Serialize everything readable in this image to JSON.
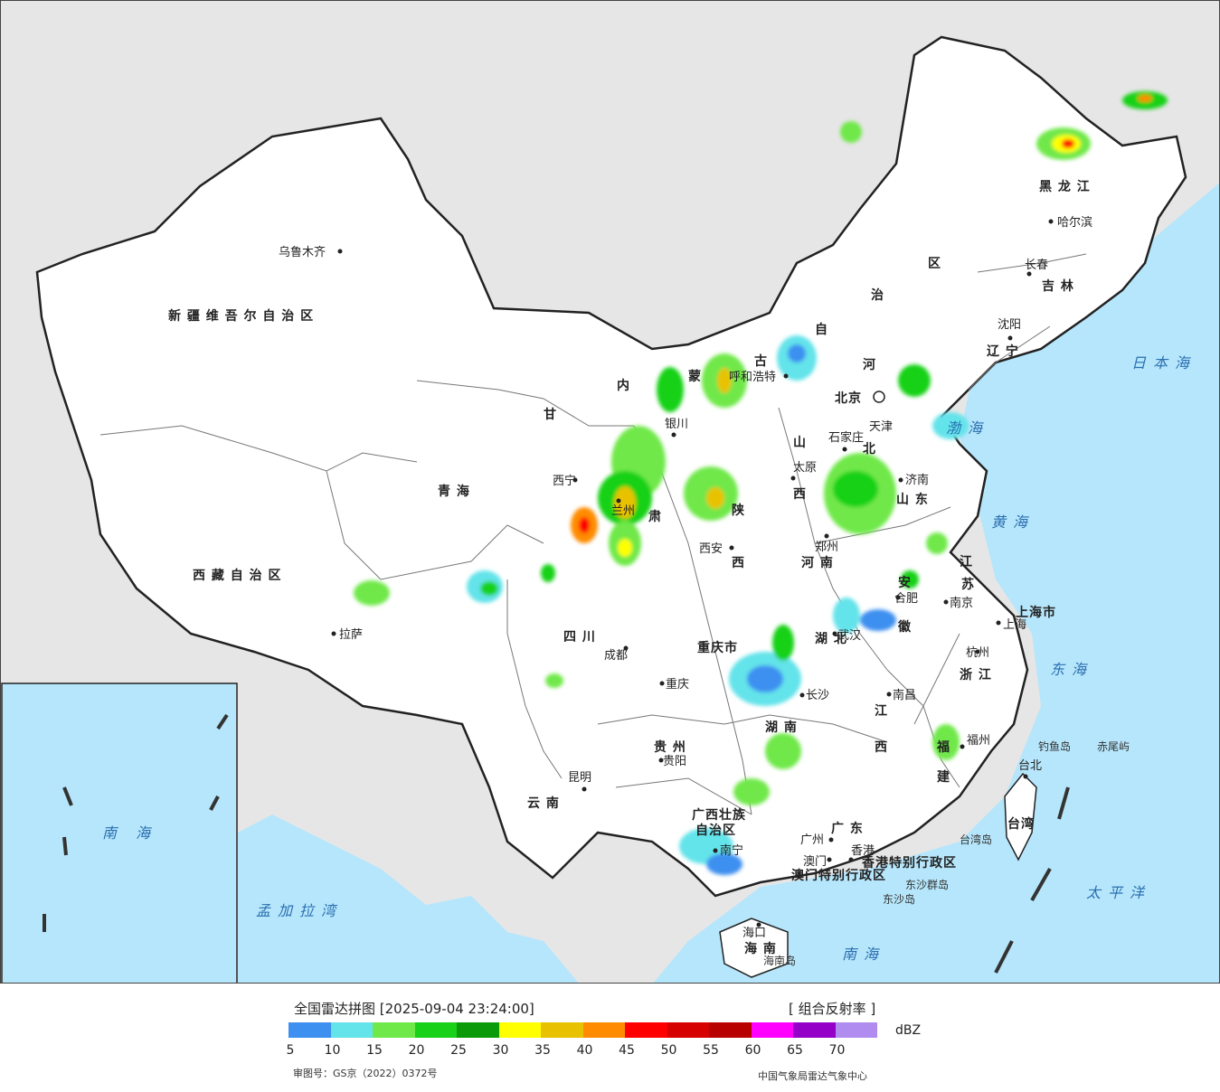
{
  "header": {
    "title": "全国雷达拼图 [2025-09-04 23:24:00]",
    "product": "[ 组合反射率 ]",
    "unit": "dBZ"
  },
  "legend": {
    "colors": [
      "#3d8ff0",
      "#63e3ea",
      "#6fe84a",
      "#18d118",
      "#0a9a0a",
      "#ffff00",
      "#e8c200",
      "#ff8c00",
      "#ff0000",
      "#d60000",
      "#b80000",
      "#ff00ff",
      "#9400c8",
      "#b08cf0"
    ],
    "ticks": [
      "5",
      "10",
      "15",
      "20",
      "25",
      "30",
      "35",
      "40",
      "45",
      "50",
      "55",
      "60",
      "65",
      "70"
    ]
  },
  "footer": {
    "approval": "审图号：GS京（2022）0372号",
    "source": "中国气象局雷达气象中心"
  },
  "regions": {
    "xinjiang": "新 疆 维 吾 尔 自 治 区",
    "xizang": "西 藏 自 治 区",
    "qinghai": "青   海",
    "gansu_1": "甘",
    "gansu_2": "肃",
    "neimenggu_1": "内",
    "neimenggu_2": "蒙",
    "neimenggu_3": "古",
    "neimenggu_4": "自",
    "neimenggu_5": "治",
    "neimenggu_6": "区",
    "heilongjiang": "黑   龙   江",
    "jilin": "吉  林",
    "liaoning": "辽  宁",
    "hebei_1": "河",
    "hebei_2": "北",
    "shanxi_1": "山",
    "shanxi_2": "西",
    "shandong": "山  东",
    "shaanxi_1": "陕",
    "shaanxi_2": "西",
    "henan": "河   南",
    "sichuan": "四       川",
    "chongqing": "重庆市",
    "hubei": "湖 北",
    "anhui_1": "安",
    "anhui_2": "徽",
    "jiangsu_1": "江",
    "jiangsu_2": "苏",
    "shanghai": "上海市",
    "zhejiang": "浙 江",
    "jiangxi_1": "江",
    "jiangxi_2": "西",
    "hunan": "湖   南",
    "guizhou": "贵   州",
    "yunnan": "云   南",
    "guangxi": "广西壮族",
    "guangxi_2": "自治区",
    "guangdong": "广  东",
    "fujian_1": "福",
    "fujian_2": "建",
    "taiwan": "台湾",
    "hainan": "海  南",
    "hk": "香港特别行政区",
    "macau": "澳门特别行政区",
    "tianjin": "天津",
    "beijing": "北京"
  },
  "cities": {
    "urumqi": "乌鲁木齐",
    "lhasa": "拉萨",
    "xining": "西宁",
    "lanzhou": "兰州",
    "yinchuan": "银川",
    "hohhot": "呼和浩特",
    "harbin": "哈尔滨",
    "changchun": "长春",
    "shenyang": "沈阳",
    "shijiazhuang": "石家庄",
    "taiyuan": "太原",
    "jinan": "济南",
    "zhengzhou": "郑州",
    "xian": "西安",
    "chengdu": "成都",
    "chongqing": "重庆",
    "wuhan": "武汉",
    "hefei": "合肥",
    "nanjing": "南京",
    "shanghai": "上海",
    "hangzhou": "杭州",
    "nanchang": "南昌",
    "changsha": "长沙",
    "guiyang": "贵阳",
    "kunming": "昆明",
    "nanning": "南宁",
    "guangzhou": "广州",
    "macau": "澳门",
    "hongkong": "香港",
    "fuzhou": "福州",
    "taipei": "台北",
    "haikou": "海口"
  },
  "seas": {
    "japan_sea": "日本海",
    "bohai": "渤海",
    "yellow_sea": "黄海",
    "east_sea": "东海",
    "pacific": "太平洋",
    "south_sea": "南海",
    "bengal": "孟加拉湾",
    "inset_south_sea": "南 海"
  },
  "islands": {
    "diaoyu": "钓鱼岛",
    "chiwei": "赤尾屿",
    "taiwan_island": "台湾岛",
    "dongsha": "东沙群岛",
    "dongsha_2": "东沙岛",
    "hainan_island": "海南岛"
  }
}
